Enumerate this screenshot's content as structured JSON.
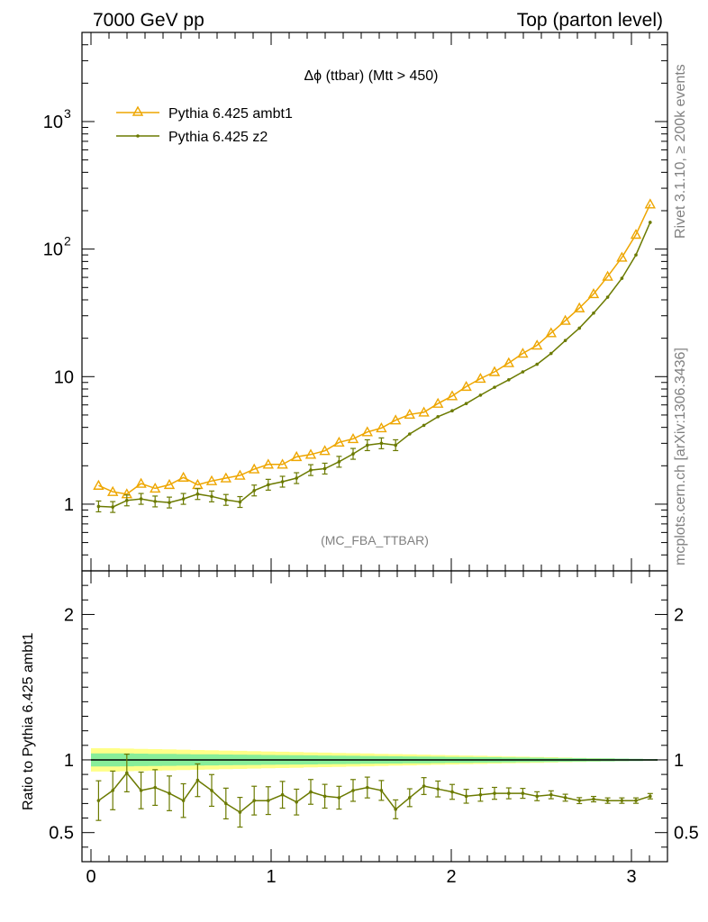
{
  "header": {
    "left": "7000 GeV pp",
    "right": "Top (parton level)"
  },
  "side": {
    "rivet": "Rivet 3.1.10, ≥ 200k events",
    "mcplots": "mcplots.cern.ch [arXiv:1306.3436]"
  },
  "colors": {
    "ambt1": "#EEA600",
    "z2": "#6B7A00",
    "band_outer": "#FFFF88",
    "band_inner": "#88EE99"
  },
  "chart_data": [
    {
      "type": "line",
      "title": "Δϕ (ttbar) (Mtt > 450)",
      "annotation": "(MC_FBA_TTBAR)",
      "yscale": "log",
      "ylim": [
        0.3,
        5000
      ],
      "xlim": [
        -0.05,
        3.2
      ],
      "y_ticks": [
        "1",
        "10",
        "10^2",
        "10^3"
      ],
      "legend_position": "top-left",
      "x": [
        0.042,
        0.121,
        0.199,
        0.278,
        0.356,
        0.435,
        0.513,
        0.592,
        0.67,
        0.749,
        0.827,
        0.906,
        0.984,
        1.063,
        1.141,
        1.22,
        1.298,
        1.377,
        1.455,
        1.534,
        1.612,
        1.691,
        1.769,
        1.848,
        1.926,
        2.005,
        2.083,
        2.162,
        2.24,
        2.319,
        2.397,
        2.476,
        2.554,
        2.633,
        2.711,
        2.79,
        2.868,
        2.947,
        3.025,
        3.104
      ],
      "series": [
        {
          "name": "Pythia 6.425 ambt1",
          "marker": "triangle",
          "values": [
            1.4,
            1.25,
            1.2,
            1.45,
            1.33,
            1.42,
            1.62,
            1.42,
            1.52,
            1.6,
            1.68,
            1.88,
            2.05,
            2.05,
            2.35,
            2.45,
            2.62,
            3.05,
            3.25,
            3.68,
            3.95,
            4.55,
            5.05,
            5.25,
            6.15,
            7.05,
            8.35,
            9.65,
            10.9,
            12.8,
            15.2,
            17.6,
            22.0,
            27.5,
            34.5,
            44.5,
            61.0,
            86.0,
            130.0,
            225.0
          ]
        },
        {
          "name": "Pythia 6.425 z2",
          "marker": "dot",
          "values": [
            0.96,
            0.95,
            1.07,
            1.1,
            1.05,
            1.03,
            1.1,
            1.2,
            1.15,
            1.08,
            1.04,
            1.28,
            1.42,
            1.5,
            1.6,
            1.85,
            1.9,
            2.15,
            2.48,
            2.9,
            3.0,
            2.9,
            3.55,
            4.15,
            4.85,
            5.4,
            6.15,
            7.15,
            8.25,
            9.45,
            10.9,
            12.5,
            15.2,
            19.2,
            24.0,
            31.5,
            42.0,
            59.0,
            90.0,
            162.0
          ]
        }
      ]
    },
    {
      "type": "line",
      "ylabel": "Ratio to Pythia 6.425 ambt1",
      "ylim": [
        0.3,
        2.3
      ],
      "xlim": [
        -0.05,
        3.2
      ],
      "x_ticks": [
        "0",
        "1",
        "2",
        "3"
      ],
      "y_ticks": [
        "0.5",
        "1",
        "2"
      ],
      "x": [
        0.042,
        0.121,
        0.199,
        0.278,
        0.356,
        0.435,
        0.513,
        0.592,
        0.67,
        0.749,
        0.827,
        0.906,
        0.984,
        1.063,
        1.141,
        1.22,
        1.298,
        1.377,
        1.455,
        1.534,
        1.612,
        1.691,
        1.769,
        1.848,
        1.926,
        2.005,
        2.083,
        2.162,
        2.24,
        2.319,
        2.397,
        2.476,
        2.554,
        2.633,
        2.711,
        2.79,
        2.868,
        2.947,
        3.025,
        3.104
      ],
      "series": [
        {
          "name": "Pythia 6.425 z2",
          "values": [
            0.72,
            0.79,
            0.91,
            0.79,
            0.81,
            0.77,
            0.72,
            0.86,
            0.79,
            0.7,
            0.64,
            0.72,
            0.72,
            0.76,
            0.71,
            0.78,
            0.75,
            0.74,
            0.79,
            0.81,
            0.79,
            0.66,
            0.74,
            0.82,
            0.8,
            0.78,
            0.75,
            0.76,
            0.77,
            0.77,
            0.77,
            0.75,
            0.76,
            0.74,
            0.72,
            0.73,
            0.72,
            0.72,
            0.72,
            0.75
          ]
        }
      ],
      "reference_band_outer_halfwidth": [
        0.08,
        0.08,
        0.078,
        0.076,
        0.074,
        0.072,
        0.07,
        0.068,
        0.066,
        0.064,
        0.062,
        0.06,
        0.058,
        0.056,
        0.054,
        0.052,
        0.05,
        0.048,
        0.046,
        0.044,
        0.042,
        0.04,
        0.038,
        0.036,
        0.034,
        0.032,
        0.03,
        0.028,
        0.026,
        0.024,
        0.022,
        0.02,
        0.018,
        0.016,
        0.014,
        0.012,
        0.01,
        0.008,
        0.006,
        0.004
      ],
      "reference_band_inner_halfwidth": [
        0.045,
        0.045,
        0.044,
        0.043,
        0.042,
        0.041,
        0.04,
        0.039,
        0.038,
        0.037,
        0.036,
        0.035,
        0.034,
        0.033,
        0.032,
        0.031,
        0.03,
        0.029,
        0.028,
        0.027,
        0.026,
        0.025,
        0.024,
        0.023,
        0.022,
        0.021,
        0.02,
        0.019,
        0.018,
        0.017,
        0.016,
        0.015,
        0.014,
        0.013,
        0.012,
        0.011,
        0.01,
        0.009,
        0.008,
        0.006
      ]
    }
  ]
}
